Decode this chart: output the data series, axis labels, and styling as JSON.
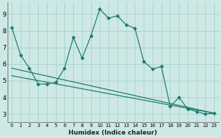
{
  "xlabel": "Humidex (Indice chaleur)",
  "bg_color": "#cde8e5",
  "grid_color": "#aad4cf",
  "line_color": "#1a7a6e",
  "xlim": [
    -0.5,
    23.5
  ],
  "ylim": [
    2.5,
    9.7
  ],
  "yticks": [
    3,
    4,
    5,
    6,
    7,
    8,
    9
  ],
  "xticks": [
    0,
    1,
    2,
    3,
    4,
    5,
    6,
    7,
    8,
    9,
    10,
    11,
    12,
    13,
    14,
    15,
    16,
    17,
    18,
    19,
    20,
    21,
    22,
    23
  ],
  "main_x": [
    0,
    1,
    2,
    3,
    4,
    5,
    6,
    7,
    8,
    9,
    10,
    11,
    12,
    13,
    14,
    15,
    16,
    17,
    18,
    19,
    20,
    21,
    22,
    23
  ],
  "main_y": [
    8.2,
    6.55,
    5.75,
    4.8,
    4.8,
    4.9,
    5.75,
    7.6,
    6.35,
    7.7,
    9.3,
    8.75,
    8.9,
    8.35,
    8.15,
    6.15,
    5.7,
    5.85,
    3.45,
    4.0,
    3.3,
    3.15,
    3.0,
    3.05
  ],
  "line2_x": [
    0,
    23
  ],
  "line2_y": [
    5.75,
    3.05
  ],
  "line3_x": [
    0,
    23
  ],
  "line3_y": [
    5.3,
    3.05
  ],
  "xlabel_fontsize": 6.5,
  "tick_fontsize_x": 5.0,
  "tick_fontsize_y": 6.5
}
